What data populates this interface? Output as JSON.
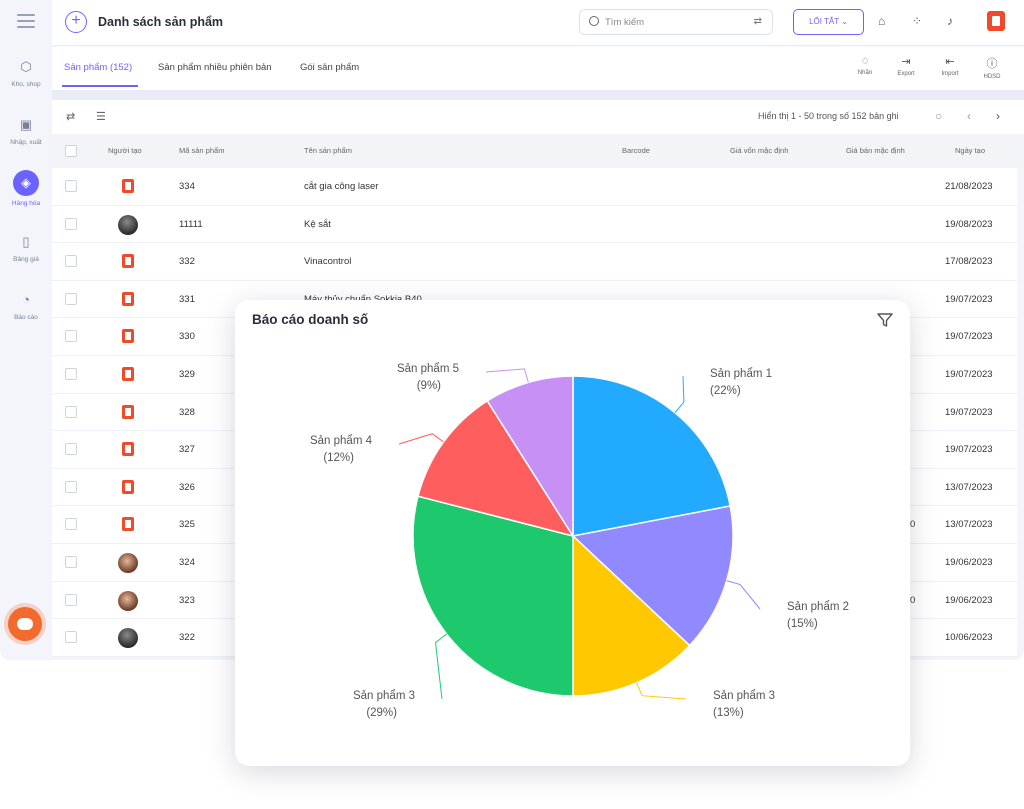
{
  "sidebar": {
    "items": [
      {
        "label": "Kho, shop",
        "icon": "box-icon"
      },
      {
        "label": "Nhập, xuất",
        "icon": "truck-icon"
      },
      {
        "label": "Hàng hóa",
        "icon": "gift-icon"
      },
      {
        "label": "Bảng giá",
        "icon": "price-tag-icon"
      },
      {
        "label": "Báo cáo",
        "icon": "pie-chart-icon"
      }
    ],
    "active_index": 2
  },
  "header": {
    "title": "Danh sách sản phẩm",
    "search_placeholder": "Tìm kiếm",
    "shortcut_label": "LỐI TẮT ⌄"
  },
  "tabs": [
    {
      "label": "Sản phẩm (152)",
      "active": true
    },
    {
      "label": "Sản phẩm nhiều phiên bản",
      "active": false
    },
    {
      "label": "Gói sản phẩm",
      "active": false
    }
  ],
  "tools": [
    {
      "label": "Nhãn",
      "icon": "label-icon"
    },
    {
      "label": "Export",
      "icon": "export-icon"
    },
    {
      "label": "Import",
      "icon": "import-icon"
    },
    {
      "label": "HDSD",
      "icon": "help-icon"
    }
  ],
  "table": {
    "count_text": "Hiển thị 1 - 50 trong số 152 bản ghi",
    "columns": [
      "Người tạo",
      "Mã sản phẩm",
      "Tên sản phẩm",
      "Barcode",
      "Giá vốn mặc định",
      "Giá bán mặc định",
      "Ngày tạo"
    ],
    "rows": [
      {
        "avatar": "brand",
        "code": "334",
        "name": "cắt gia công laser",
        "price": "",
        "date": "21/08/2023"
      },
      {
        "avatar": "dark",
        "code": "11111",
        "name": "Kệ sắt",
        "price": "",
        "date": "19/08/2023"
      },
      {
        "avatar": "brand",
        "code": "332",
        "name": "Vinacontrol",
        "price": "",
        "date": "17/08/2023"
      },
      {
        "avatar": "brand",
        "code": "331",
        "name": "Máy thủy chuẩn Sokkia B40",
        "price": "",
        "date": "19/07/2023"
      },
      {
        "avatar": "brand",
        "code": "330",
        "name": "",
        "price": "",
        "date": "19/07/2023"
      },
      {
        "avatar": "brand",
        "code": "329",
        "name": "",
        "price": "",
        "date": "19/07/2023"
      },
      {
        "avatar": "brand",
        "code": "328",
        "name": "",
        "price": "",
        "date": "19/07/2023"
      },
      {
        "avatar": "brand",
        "code": "327",
        "name": "",
        "price": "",
        "date": "19/07/2023"
      },
      {
        "avatar": "brand",
        "code": "326",
        "name": "",
        "price": "",
        "date": "13/07/2023"
      },
      {
        "avatar": "brand",
        "code": "325",
        "name": "",
        "price": "0",
        "date": "13/07/2023"
      },
      {
        "avatar": "brown",
        "code": "324",
        "name": "",
        "price": "",
        "date": "19/06/2023"
      },
      {
        "avatar": "brown",
        "code": "323",
        "name": "",
        "price": "0",
        "date": "19/06/2023"
      },
      {
        "avatar": "dark",
        "code": "322",
        "name": "",
        "price": "",
        "date": "10/06/2023"
      }
    ]
  },
  "report": {
    "title": "Báo cáo doanh số",
    "filter_icon": "filter-icon"
  },
  "chart_data": {
    "type": "pie",
    "title": "Báo cáo doanh số",
    "slices": [
      {
        "label": "Sản phẩm 1",
        "value": 22,
        "pct_text": "(22%)",
        "color": "#22aaff"
      },
      {
        "label": "Sản phẩm 2",
        "value": 15,
        "pct_text": "(15%)",
        "color": "#9189ff"
      },
      {
        "label": "Sản phẩm 3",
        "value": 13,
        "pct_text": "(13%)",
        "color": "#ffc800"
      },
      {
        "label": "Sản phẩm 3",
        "value": 29,
        "pct_text": "(29%)",
        "color": "#1ec96e"
      },
      {
        "label": "Sản phẩm 4",
        "value": 12,
        "pct_text": "(12%)",
        "color": "#ff5e5e"
      },
      {
        "label": "Sản phẩm 5",
        "value": 9,
        "pct_text": "(9%)",
        "color": "#c690f5"
      }
    ],
    "legend": "none"
  },
  "colors": {
    "accent": "#6c63ff",
    "brand": "#f04a2c"
  }
}
